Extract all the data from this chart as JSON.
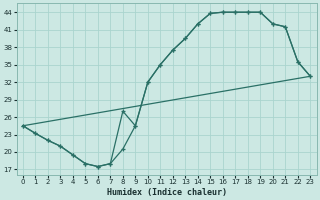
{
  "bg_color": "#cce8e3",
  "grid_color": "#aad4ce",
  "line_color": "#2a7066",
  "xlim": [
    -0.5,
    23.5
  ],
  "ylim": [
    16.0,
    45.5
  ],
  "xticks": [
    0,
    1,
    2,
    3,
    4,
    5,
    6,
    7,
    8,
    9,
    10,
    11,
    12,
    13,
    14,
    15,
    16,
    17,
    18,
    19,
    20,
    21,
    22,
    23
  ],
  "yticks": [
    17,
    20,
    23,
    26,
    29,
    32,
    35,
    38,
    41,
    44
  ],
  "xlabel": "Humidex (Indice chaleur)",
  "curve1_x": [
    0,
    1,
    2,
    3,
    4,
    5,
    6,
    7,
    8,
    9,
    10,
    11,
    12,
    13,
    14,
    15,
    16,
    17,
    18,
    19,
    20,
    21,
    22,
    23
  ],
  "curve1_y": [
    24.5,
    23.2,
    22.0,
    21.0,
    19.5,
    18.0,
    17.5,
    18.0,
    20.5,
    24.5,
    32.0,
    35.0,
    37.5,
    39.5,
    42.0,
    43.8,
    44.0,
    44.0,
    44.0,
    44.0,
    42.0,
    41.5,
    35.5,
    33.0
  ],
  "curve2_x": [
    0,
    1,
    2,
    3,
    4,
    5,
    6,
    7,
    8,
    9,
    10,
    11,
    12,
    13,
    14,
    15,
    16,
    17,
    18,
    19,
    20,
    21,
    22,
    23
  ],
  "curve2_y": [
    24.5,
    23.2,
    22.0,
    21.0,
    19.5,
    18.0,
    17.5,
    18.0,
    27.0,
    24.5,
    32.0,
    35.0,
    37.5,
    39.5,
    42.0,
    43.8,
    44.0,
    44.0,
    44.0,
    44.0,
    42.0,
    41.5,
    35.5,
    33.0
  ],
  "curve3_x": [
    0,
    23
  ],
  "curve3_y": [
    24.5,
    33.0
  ]
}
